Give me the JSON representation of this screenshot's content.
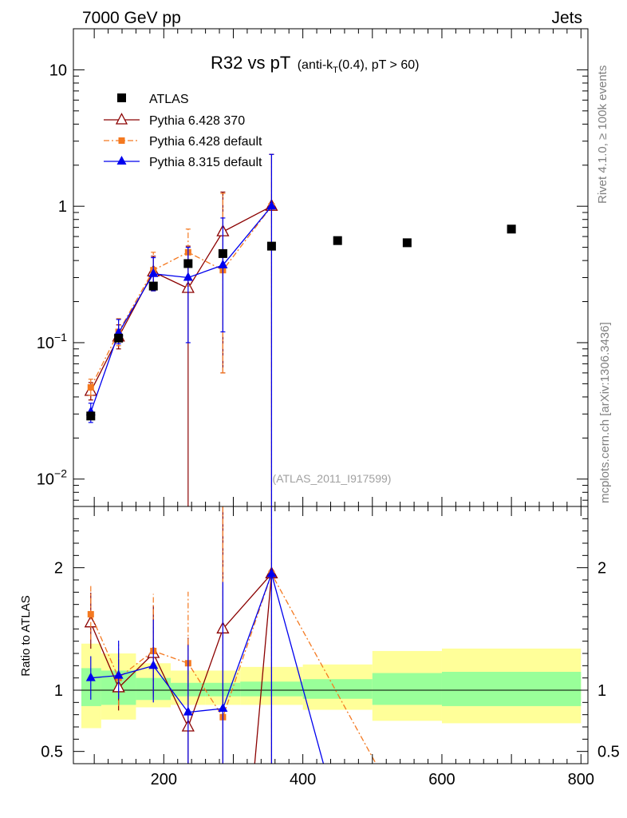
{
  "header": {
    "left": "7000 GeV pp",
    "right": "Jets"
  },
  "side_labels": {
    "rivet": "Rivet 4.1.0, ≥ 100k events",
    "mcplots": "mcplots.cern.ch [arXiv:1306.3436]"
  },
  "chart_data": {
    "type": "scatter",
    "title": "R32 vs pT",
    "title_suffix_a": "(anti-k",
    "title_suffix_sub": "T",
    "title_suffix_b": "(0.4), pT > 60)",
    "analysis_id": "(ATLAS_2011_I917599)",
    "xlabel": "",
    "ylabel": "",
    "xlim": [
      70,
      810
    ],
    "ylim": [
      0.0063,
      20
    ],
    "yscale": "log",
    "x_ticks": [
      200,
      400,
      600,
      800
    ],
    "x_tick_labels": [
      "200",
      "400",
      "600",
      "800"
    ],
    "y_ticks": [
      0.01,
      0.1,
      1,
      10
    ],
    "y_tick_labels": [
      {
        "base": "10",
        "exp": "−2"
      },
      {
        "base": "10",
        "exp": "−1"
      },
      {
        "base": "1",
        "exp": ""
      },
      {
        "base": "10",
        "exp": ""
      }
    ],
    "legend": {
      "position": "top-left",
      "entries": [
        "ATLAS",
        "Pythia 6.428 370",
        "Pythia 6.428 default",
        "Pythia 8.315 default"
      ]
    },
    "colors": {
      "data": "#000000",
      "p6_370": "#8b0000",
      "p6_default": "#f47920",
      "p8_default": "#0000ee",
      "band_inner": "#99ff99",
      "band_outer": "#ffff99"
    },
    "data": {
      "name": "ATLAS",
      "x": [
        95,
        135,
        185,
        235,
        285,
        355,
        450,
        550,
        700
      ],
      "y": [
        0.029,
        0.108,
        0.26,
        0.38,
        0.45,
        0.51,
        0.56,
        0.54,
        0.68
      ]
    },
    "series": [
      {
        "name": "Pythia 6.428 370",
        "style": "solid",
        "marker": "triangle-open",
        "x": [
          95,
          135,
          185,
          235,
          285,
          355
        ],
        "y": [
          0.044,
          0.11,
          0.33,
          0.25,
          0.65,
          1.0
        ],
        "err_lo": [
          0.006,
          0.02,
          0.09,
          0.25,
          0.59,
          1.0
        ],
        "err_hi": [
          0.007,
          0.025,
          0.1,
          0.26,
          0.62,
          1.4
        ],
        "ratio": [
          1.55,
          1.02,
          1.3,
          0.7,
          1.5,
          1.95,
          0.35
        ],
        "ratio_x": [
          95,
          135,
          185,
          235,
          285,
          355,
          330
        ]
      },
      {
        "name": "Pythia 6.428 default",
        "style": "dashdot",
        "marker": "square",
        "x": [
          95,
          135,
          185,
          235,
          285,
          355
        ],
        "y": [
          0.047,
          0.12,
          0.34,
          0.46,
          0.34,
          1.0
        ],
        "err_lo": [
          0.006,
          0.025,
          0.1,
          0.2,
          0.28,
          1.0
        ],
        "err_hi": [
          0.007,
          0.03,
          0.12,
          0.22,
          0.9,
          1.4
        ],
        "ratio": [
          1.62,
          1.1,
          1.32,
          1.22,
          0.78,
          1.95,
          0.35
        ],
        "ratio_x": [
          95,
          135,
          185,
          235,
          285,
          355,
          510
        ]
      },
      {
        "name": "Pythia 8.315 default",
        "style": "solid",
        "marker": "triangle-filled",
        "x": [
          95,
          135,
          185,
          235,
          285,
          355
        ],
        "y": [
          0.031,
          0.118,
          0.32,
          0.3,
          0.37,
          1.0
        ],
        "err_lo": [
          0.005,
          0.02,
          0.08,
          0.2,
          0.25,
          1.0
        ],
        "err_hi": [
          0.005,
          0.03,
          0.1,
          0.2,
          0.45,
          1.4
        ],
        "ratio": [
          1.1,
          1.12,
          1.2,
          0.82,
          0.85,
          1.95,
          0.35
        ],
        "ratio_x": [
          95,
          135,
          185,
          235,
          285,
          355,
          432
        ]
      }
    ],
    "ratio_panel": {
      "ylabel": "Ratio to ATLAS",
      "ylim": [
        0.4,
        2.5
      ],
      "y_ticks": [
        0.5,
        1,
        2
      ],
      "y_tick_labels": [
        "0.5",
        "1",
        "2"
      ],
      "bins": [
        {
          "lo": 70,
          "hi": 110,
          "inner": [
            0.87,
            1.18
          ],
          "outer": [
            0.69,
            1.38
          ]
        },
        {
          "lo": 110,
          "hi": 160,
          "inner": [
            0.88,
            1.16
          ],
          "outer": [
            0.76,
            1.3
          ]
        },
        {
          "lo": 160,
          "hi": 210,
          "inner": [
            0.92,
            1.1
          ],
          "outer": [
            0.86,
            1.22
          ]
        },
        {
          "lo": 210,
          "hi": 260,
          "inner": [
            0.95,
            1.06
          ],
          "outer": [
            0.88,
            1.16
          ]
        },
        {
          "lo": 260,
          "hi": 310,
          "inner": [
            0.95,
            1.06
          ],
          "outer": [
            0.88,
            1.16
          ]
        },
        {
          "lo": 310,
          "hi": 400,
          "inner": [
            0.95,
            1.07
          ],
          "outer": [
            0.88,
            1.19
          ]
        },
        {
          "lo": 400,
          "hi": 500,
          "inner": [
            0.93,
            1.09
          ],
          "outer": [
            0.84,
            1.21
          ]
        },
        {
          "lo": 500,
          "hi": 600,
          "inner": [
            0.88,
            1.14
          ],
          "outer": [
            0.75,
            1.32
          ]
        },
        {
          "lo": 600,
          "hi": 800,
          "inner": [
            0.87,
            1.15
          ],
          "outer": [
            0.73,
            1.34
          ]
        }
      ]
    }
  }
}
